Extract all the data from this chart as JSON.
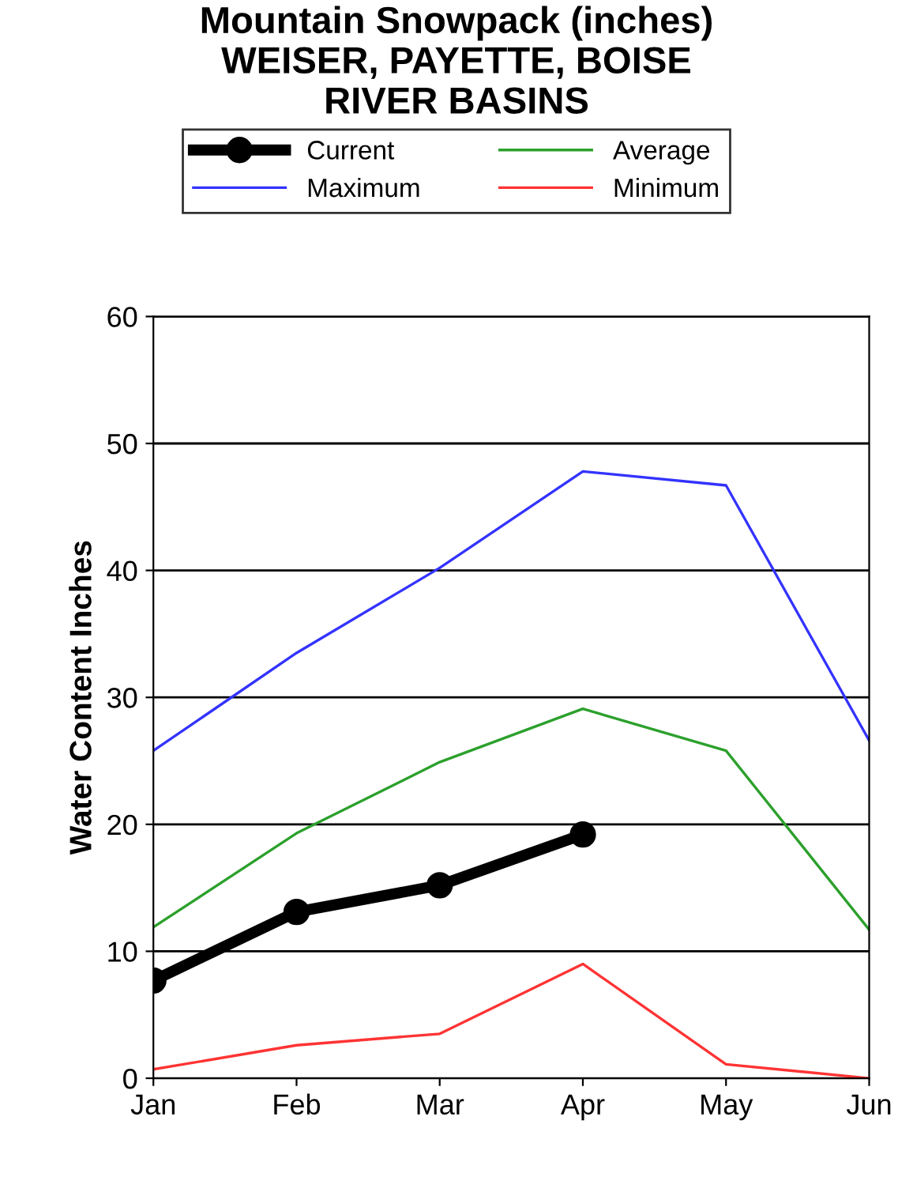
{
  "chart_data": {
    "type": "line",
    "title": "Mountain Snowpack (inches)\nWEISER, PAYETTE, BOISE\nRIVER BASINS",
    "ylabel": "Water Content Inches",
    "categories": [
      "Jan",
      "Feb",
      "Mar",
      "Apr",
      "May",
      "Jun"
    ],
    "series": [
      {
        "name": "Current",
        "color": "#000000",
        "marker": "circle",
        "values": [
          7.7,
          13.1,
          15.2,
          19.2,
          null,
          null
        ]
      },
      {
        "name": "Average",
        "color": "#2ca02c",
        "values": [
          11.9,
          19.3,
          24.9,
          29.1,
          25.8,
          11.7
        ]
      },
      {
        "name": "Maximum",
        "color": "#3333ff",
        "values": [
          25.8,
          33.5,
          40.2,
          47.8,
          46.7,
          26.6
        ]
      },
      {
        "name": "Minimum",
        "color": "#ff3333",
        "values": [
          0.7,
          2.6,
          3.5,
          9.0,
          1.1,
          0
        ]
      }
    ],
    "ylim": [
      0,
      60
    ],
    "yticks": [
      0,
      10,
      20,
      30,
      40,
      50,
      60
    ],
    "grid": "y",
    "legend": "top"
  }
}
